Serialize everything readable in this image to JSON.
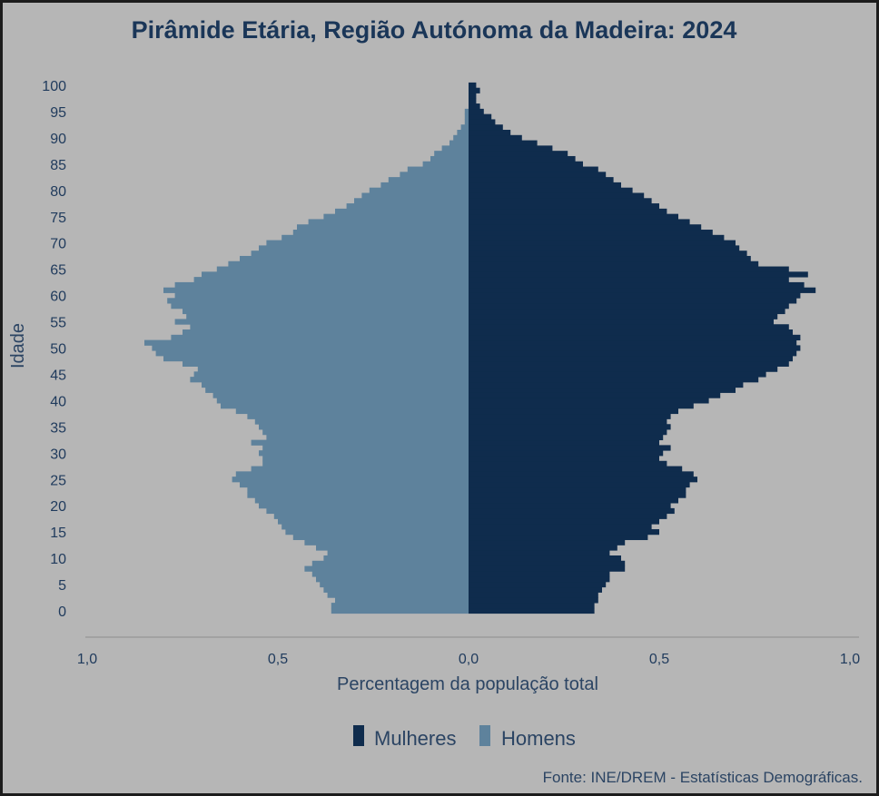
{
  "chart_data": {
    "type": "bar",
    "orientation": "horizontal-population-pyramid",
    "title": "Pirâmide Etária, Região Autónoma da Madeira: 2024",
    "xlabel": "Percentagem da população total",
    "ylabel": "Idade",
    "xlim": [
      -1.0,
      1.0
    ],
    "x_tick_values": [
      -1.0,
      -0.5,
      0.0,
      0.5,
      1.0
    ],
    "x_tick_labels": [
      "1,0",
      "0,5",
      "0,0",
      "0,5",
      "1,0"
    ],
    "y_tick_values": [
      100,
      95,
      90,
      85,
      80,
      75,
      70,
      65,
      60,
      55,
      50,
      45,
      40,
      35,
      30,
      25,
      20,
      15,
      10,
      5,
      0
    ],
    "y_tick_labels": [
      "100",
      "95",
      "90",
      "85",
      "80",
      "75",
      "70",
      "65",
      "60",
      "55",
      "50",
      "45",
      "40",
      "35",
      "30",
      "25",
      "20",
      "15",
      "10",
      "5",
      "0"
    ],
    "ages": [
      0,
      1,
      2,
      3,
      4,
      5,
      6,
      7,
      8,
      9,
      10,
      11,
      12,
      13,
      14,
      15,
      16,
      17,
      18,
      19,
      20,
      21,
      22,
      23,
      24,
      25,
      26,
      27,
      28,
      29,
      30,
      31,
      32,
      33,
      34,
      35,
      36,
      37,
      38,
      39,
      40,
      41,
      42,
      43,
      44,
      45,
      46,
      47,
      48,
      49,
      50,
      51,
      52,
      53,
      54,
      55,
      56,
      57,
      58,
      59,
      60,
      61,
      62,
      63,
      64,
      65,
      66,
      67,
      68,
      69,
      70,
      71,
      72,
      73,
      74,
      75,
      76,
      77,
      78,
      79,
      80,
      81,
      82,
      83,
      84,
      85,
      86,
      87,
      88,
      89,
      90,
      91,
      92,
      93,
      94,
      95,
      96,
      97,
      98,
      99,
      100
    ],
    "series": [
      {
        "name": "Mulheres",
        "color": "#0f2c4d",
        "values": [
          0.33,
          0.33,
          0.34,
          0.34,
          0.35,
          0.36,
          0.37,
          0.37,
          0.41,
          0.41,
          0.4,
          0.37,
          0.39,
          0.41,
          0.47,
          0.5,
          0.48,
          0.5,
          0.52,
          0.54,
          0.53,
          0.55,
          0.57,
          0.57,
          0.58,
          0.6,
          0.59,
          0.56,
          0.52,
          0.5,
          0.51,
          0.53,
          0.5,
          0.51,
          0.52,
          0.53,
          0.52,
          0.53,
          0.55,
          0.59,
          0.63,
          0.66,
          0.7,
          0.72,
          0.76,
          0.78,
          0.81,
          0.84,
          0.85,
          0.86,
          0.87,
          0.86,
          0.87,
          0.85,
          0.84,
          0.8,
          0.81,
          0.83,
          0.84,
          0.86,
          0.87,
          0.91,
          0.88,
          0.84,
          0.89,
          0.84,
          0.76,
          0.74,
          0.73,
          0.71,
          0.7,
          0.67,
          0.64,
          0.61,
          0.58,
          0.55,
          0.52,
          0.5,
          0.48,
          0.46,
          0.43,
          0.4,
          0.38,
          0.36,
          0.34,
          0.3,
          0.28,
          0.26,
          0.22,
          0.18,
          0.14,
          0.11,
          0.09,
          0.07,
          0.06,
          0.04,
          0.03,
          0.02,
          0.02,
          0.03,
          0.02
        ]
      },
      {
        "name": "Homens",
        "color": "#5e829c",
        "values": [
          0.36,
          0.36,
          0.35,
          0.37,
          0.38,
          0.39,
          0.4,
          0.41,
          0.43,
          0.41,
          0.38,
          0.37,
          0.4,
          0.43,
          0.46,
          0.48,
          0.49,
          0.5,
          0.51,
          0.53,
          0.55,
          0.56,
          0.58,
          0.58,
          0.6,
          0.62,
          0.61,
          0.57,
          0.54,
          0.54,
          0.55,
          0.54,
          0.57,
          0.53,
          0.54,
          0.55,
          0.56,
          0.58,
          0.61,
          0.65,
          0.66,
          0.67,
          0.69,
          0.7,
          0.73,
          0.72,
          0.71,
          0.75,
          0.8,
          0.82,
          0.83,
          0.85,
          0.78,
          0.75,
          0.73,
          0.77,
          0.74,
          0.75,
          0.78,
          0.79,
          0.77,
          0.8,
          0.77,
          0.72,
          0.7,
          0.66,
          0.63,
          0.6,
          0.57,
          0.55,
          0.53,
          0.49,
          0.46,
          0.45,
          0.42,
          0.38,
          0.35,
          0.32,
          0.3,
          0.28,
          0.26,
          0.23,
          0.21,
          0.18,
          0.16,
          0.12,
          0.1,
          0.09,
          0.07,
          0.05,
          0.04,
          0.03,
          0.02,
          0.01,
          0.01,
          0.01,
          0.0,
          0.0,
          0.0,
          0.0,
          0.0
        ]
      }
    ],
    "legend": [
      "Mulheres",
      "Homens"
    ],
    "legend_position": "bottom-center",
    "grid": false
  },
  "source_note": "Fonte: INE/DREM - Estatísticas Demográficas."
}
